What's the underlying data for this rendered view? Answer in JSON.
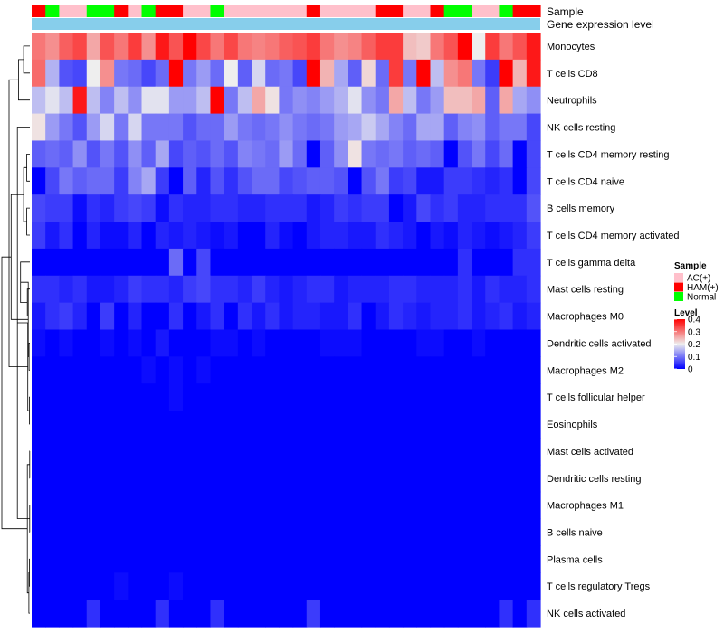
{
  "chart_data": {
    "type": "heatmap",
    "title": "",
    "annotation_track_labels": [
      "Sample",
      "Gene expression level"
    ],
    "rows": [
      "Monocytes",
      "T cells CD8",
      "Neutrophils",
      "NK cells resting",
      "T cells CD4 memory resting",
      "T cells CD4 naive",
      "B cells memory",
      "T cells CD4 memory activated",
      "T cells gamma delta",
      "Mast cells resting",
      "Macrophages M0",
      "Dendritic cells activated",
      "Macrophages M2",
      "T cells follicular helper",
      "Eosinophils",
      "Mast cells activated",
      "Dendritic cells resting",
      "Macrophages M1",
      "B cells naive",
      "Plasma cells",
      "T cells regulatory  Tregs",
      "NK cells activated"
    ],
    "sample_groups": [
      "HAM(+)",
      "Normal",
      "AC(+)",
      "AC(+)",
      "Normal",
      "Normal",
      "HAM(+)",
      "AC(+)",
      "Normal",
      "HAM(+)",
      "HAM(+)",
      "AC(+)",
      "AC(+)",
      "Normal",
      "AC(+)",
      "AC(+)",
      "AC(+)",
      "AC(+)",
      "AC(+)",
      "AC(+)",
      "HAM(+)",
      "AC(+)",
      "AC(+)",
      "AC(+)",
      "AC(+)",
      "HAM(+)",
      "HAM(+)",
      "AC(+)",
      "AC(+)",
      "HAM(+)",
      "Normal",
      "Normal",
      "AC(+)",
      "AC(+)",
      "Normal",
      "HAM(+)",
      "HAM(+)"
    ],
    "values": [
      [
        0.3,
        0.28,
        0.32,
        0.34,
        0.26,
        0.33,
        0.3,
        0.35,
        0.28,
        0.38,
        0.33,
        0.4,
        0.34,
        0.3,
        0.34,
        0.3,
        0.29,
        0.3,
        0.32,
        0.33,
        0.35,
        0.3,
        0.28,
        0.29,
        0.32,
        0.35,
        0.35,
        0.24,
        0.23,
        0.3,
        0.33,
        0.4,
        0.2,
        0.35,
        0.3,
        0.33,
        0.38
      ],
      [
        0.31,
        0.15,
        0.07,
        0.06,
        0.2,
        0.28,
        0.1,
        0.09,
        0.06,
        0.09,
        0.4,
        0.1,
        0.13,
        0.09,
        0.2,
        0.08,
        0.18,
        0.09,
        0.1,
        0.06,
        0.4,
        0.25,
        0.14,
        0.08,
        0.22,
        0.09,
        0.35,
        0.1,
        0.4,
        0.16,
        0.28,
        0.3,
        0.1,
        0.05,
        0.4,
        0.25,
        0.38
      ],
      [
        0.16,
        0.19,
        0.16,
        0.38,
        0.16,
        0.11,
        0.16,
        0.12,
        0.19,
        0.19,
        0.13,
        0.13,
        0.16,
        0.4,
        0.1,
        0.16,
        0.26,
        0.21,
        0.1,
        0.12,
        0.11,
        0.13,
        0.15,
        0.19,
        0.12,
        0.1,
        0.26,
        0.16,
        0.1,
        0.13,
        0.24,
        0.24,
        0.26,
        0.08,
        0.26,
        0.14,
        0.12
      ],
      [
        0.21,
        0.13,
        0.1,
        0.07,
        0.13,
        0.18,
        0.1,
        0.18,
        0.1,
        0.1,
        0.1,
        0.07,
        0.09,
        0.09,
        0.13,
        0.1,
        0.09,
        0.1,
        0.12,
        0.1,
        0.09,
        0.1,
        0.13,
        0.14,
        0.17,
        0.14,
        0.11,
        0.09,
        0.14,
        0.14,
        0.08,
        0.11,
        0.12,
        0.08,
        0.1,
        0.1,
        0.06
      ],
      [
        0.08,
        0.09,
        0.08,
        0.12,
        0.07,
        0.1,
        0.07,
        0.12,
        0.08,
        0.14,
        0.06,
        0.08,
        0.07,
        0.09,
        0.07,
        0.11,
        0.1,
        0.09,
        0.13,
        0.09,
        0.0,
        0.08,
        0.12,
        0.21,
        0.1,
        0.09,
        0.1,
        0.08,
        0.09,
        0.08,
        0.0,
        0.07,
        0.1,
        0.06,
        0.09,
        0.0,
        0.06
      ],
      [
        0.0,
        0.06,
        0.1,
        0.08,
        0.09,
        0.09,
        0.05,
        0.11,
        0.14,
        0.05,
        0.0,
        0.08,
        0.03,
        0.07,
        0.04,
        0.07,
        0.09,
        0.09,
        0.06,
        0.07,
        0.08,
        0.08,
        0.07,
        0.0,
        0.07,
        0.1,
        0.05,
        0.06,
        0.02,
        0.02,
        0.05,
        0.05,
        0.04,
        0.03,
        0.04,
        0.0,
        0.06
      ],
      [
        0.06,
        0.05,
        0.05,
        0.01,
        0.04,
        0.03,
        0.05,
        0.06,
        0.05,
        0.01,
        0.04,
        0.03,
        0.03,
        0.04,
        0.04,
        0.03,
        0.03,
        0.04,
        0.04,
        0.04,
        0.02,
        0.03,
        0.05,
        0.04,
        0.05,
        0.05,
        0.0,
        0.02,
        0.06,
        0.04,
        0.05,
        0.03,
        0.03,
        0.04,
        0.04,
        0.04,
        0.07
      ],
      [
        0.05,
        0.02,
        0.04,
        0.0,
        0.03,
        0.01,
        0.01,
        0.03,
        0.0,
        0.03,
        0.02,
        0.03,
        0.02,
        0.01,
        0.02,
        0.0,
        0.0,
        0.03,
        0.01,
        0.0,
        0.02,
        0.03,
        0.03,
        0.02,
        0.02,
        0.04,
        0.03,
        0.02,
        0.0,
        0.02,
        0.01,
        0.03,
        0.02,
        0.01,
        0.02,
        0.03,
        0.05
      ],
      [
        0.0,
        0.0,
        0.0,
        0.0,
        0.0,
        0.0,
        0.0,
        0.0,
        0.0,
        0.0,
        0.09,
        0.0,
        0.06,
        0.0,
        0.0,
        0.0,
        0.0,
        0.0,
        0.0,
        0.0,
        0.0,
        0.0,
        0.0,
        0.0,
        0.0,
        0.0,
        0.0,
        0.0,
        0.0,
        0.0,
        0.0,
        0.04,
        0.0,
        0.0,
        0.0,
        0.04,
        0.04
      ],
      [
        0.04,
        0.04,
        0.03,
        0.04,
        0.02,
        0.02,
        0.03,
        0.05,
        0.04,
        0.04,
        0.03,
        0.05,
        0.06,
        0.04,
        0.04,
        0.03,
        0.05,
        0.03,
        0.02,
        0.03,
        0.04,
        0.04,
        0.02,
        0.03,
        0.03,
        0.03,
        0.04,
        0.04,
        0.03,
        0.03,
        0.03,
        0.04,
        0.02,
        0.04,
        0.03,
        0.03,
        0.04
      ],
      [
        0.02,
        0.04,
        0.05,
        0.03,
        0.0,
        0.05,
        0.0,
        0.03,
        0.0,
        0.0,
        0.04,
        0.0,
        0.02,
        0.04,
        0.0,
        0.04,
        0.02,
        0.04,
        0.02,
        0.03,
        0.03,
        0.02,
        0.02,
        0.04,
        0.0,
        0.02,
        0.04,
        0.03,
        0.02,
        0.03,
        0.03,
        0.04,
        0.02,
        0.03,
        0.04,
        0.02,
        0.03
      ],
      [
        0.01,
        0.0,
        0.01,
        0.0,
        0.0,
        0.01,
        0.0,
        0.01,
        0.0,
        0.02,
        0.0,
        0.0,
        0.0,
        0.01,
        0.01,
        0.0,
        0.01,
        0.0,
        0.0,
        0.0,
        0.0,
        0.01,
        0.01,
        0.01,
        0.0,
        0.0,
        0.0,
        0.0,
        0.01,
        0.01,
        0.0,
        0.0,
        0.01,
        0.0,
        0.0,
        0.0,
        0.0
      ],
      [
        0.0,
        0.0,
        0.0,
        0.0,
        0.0,
        0.0,
        0.0,
        0.0,
        0.01,
        0.0,
        0.01,
        0.0,
        0.01,
        0.0,
        0.0,
        0.0,
        0.0,
        0.0,
        0.0,
        0.0,
        0.0,
        0.0,
        0.0,
        0.0,
        0.0,
        0.0,
        0.0,
        0.0,
        0.0,
        0.0,
        0.0,
        0.0,
        0.0,
        0.0,
        0.0,
        0.0,
        0.0
      ],
      [
        0.0,
        0.0,
        0.0,
        0.0,
        0.0,
        0.0,
        0.0,
        0.0,
        0.0,
        0.0,
        0.01,
        0.0,
        0.0,
        0.0,
        0.0,
        0.0,
        0.0,
        0.0,
        0.0,
        0.0,
        0.0,
        0.0,
        0.0,
        0.0,
        0.0,
        0.0,
        0.0,
        0.0,
        0.0,
        0.0,
        0.0,
        0.0,
        0.0,
        0.0,
        0.0,
        0.0,
        0.0
      ],
      [
        0.0,
        0.0,
        0.0,
        0.0,
        0.0,
        0.0,
        0.0,
        0.0,
        0.0,
        0.0,
        0.0,
        0.0,
        0.0,
        0.0,
        0.0,
        0.0,
        0.0,
        0.0,
        0.0,
        0.0,
        0.0,
        0.0,
        0.0,
        0.0,
        0.0,
        0.0,
        0.0,
        0.0,
        0.0,
        0.0,
        0.0,
        0.0,
        0.0,
        0.0,
        0.0,
        0.0,
        0.0
      ],
      [
        0.0,
        0.0,
        0.0,
        0.0,
        0.0,
        0.0,
        0.0,
        0.0,
        0.0,
        0.0,
        0.0,
        0.0,
        0.0,
        0.0,
        0.0,
        0.0,
        0.0,
        0.0,
        0.0,
        0.0,
        0.0,
        0.0,
        0.0,
        0.0,
        0.0,
        0.0,
        0.0,
        0.0,
        0.0,
        0.0,
        0.0,
        0.0,
        0.0,
        0.0,
        0.0,
        0.0,
        0.0
      ],
      [
        0.0,
        0.0,
        0.0,
        0.0,
        0.0,
        0.0,
        0.0,
        0.0,
        0.0,
        0.0,
        0.0,
        0.0,
        0.0,
        0.0,
        0.0,
        0.0,
        0.0,
        0.0,
        0.0,
        0.0,
        0.0,
        0.0,
        0.0,
        0.0,
        0.0,
        0.0,
        0.0,
        0.0,
        0.0,
        0.0,
        0.0,
        0.0,
        0.0,
        0.0,
        0.0,
        0.0,
        0.0
      ],
      [
        0.0,
        0.0,
        0.0,
        0.0,
        0.0,
        0.0,
        0.0,
        0.0,
        0.0,
        0.0,
        0.0,
        0.0,
        0.0,
        0.0,
        0.0,
        0.0,
        0.0,
        0.0,
        0.0,
        0.0,
        0.0,
        0.0,
        0.0,
        0.0,
        0.0,
        0.0,
        0.0,
        0.0,
        0.0,
        0.0,
        0.0,
        0.0,
        0.0,
        0.0,
        0.0,
        0.0,
        0.0
      ],
      [
        0.0,
        0.0,
        0.0,
        0.0,
        0.0,
        0.0,
        0.0,
        0.0,
        0.0,
        0.0,
        0.0,
        0.0,
        0.0,
        0.0,
        0.0,
        0.0,
        0.0,
        0.0,
        0.0,
        0.0,
        0.0,
        0.0,
        0.0,
        0.0,
        0.0,
        0.0,
        0.0,
        0.0,
        0.0,
        0.0,
        0.0,
        0.0,
        0.0,
        0.0,
        0.0,
        0.0,
        0.0
      ],
      [
        0.0,
        0.0,
        0.0,
        0.0,
        0.0,
        0.0,
        0.0,
        0.0,
        0.0,
        0.0,
        0.0,
        0.0,
        0.0,
        0.0,
        0.0,
        0.0,
        0.0,
        0.0,
        0.0,
        0.0,
        0.0,
        0.0,
        0.0,
        0.0,
        0.0,
        0.0,
        0.0,
        0.0,
        0.0,
        0.0,
        0.0,
        0.0,
        0.0,
        0.0,
        0.0,
        0.0,
        0.0
      ],
      [
        0.0,
        0.0,
        0.0,
        0.0,
        0.0,
        0.0,
        0.01,
        0.0,
        0.0,
        0.0,
        0.01,
        0.0,
        0.0,
        0.0,
        0.0,
        0.0,
        0.0,
        0.0,
        0.0,
        0.0,
        0.0,
        0.0,
        0.0,
        0.0,
        0.0,
        0.0,
        0.0,
        0.0,
        0.0,
        0.0,
        0.0,
        0.0,
        0.0,
        0.0,
        0.0,
        0.0,
        0.0
      ],
      [
        0.0,
        0.0,
        0.0,
        0.0,
        0.04,
        0.0,
        0.0,
        0.0,
        0.0,
        0.04,
        0.0,
        0.0,
        0.0,
        0.04,
        0.0,
        0.0,
        0.0,
        0.0,
        0.0,
        0.0,
        0.05,
        0.0,
        0.0,
        0.0,
        0.0,
        0.0,
        0.0,
        0.0,
        0.0,
        0.0,
        0.0,
        0.0,
        0.0,
        0.0,
        0.04,
        0.0,
        0.04
      ]
    ],
    "color_scale": {
      "min": 0,
      "max": 0.4,
      "stops": [
        {
          "value": 0,
          "color": "#0000ff"
        },
        {
          "value": 0.2,
          "color": "#eeeeee"
        },
        {
          "value": 0.4,
          "color": "#ff0000"
        }
      ]
    },
    "sample_legend": {
      "title": "Sample",
      "entries": [
        {
          "label": "AC(+)",
          "color": "#ffc0cb"
        },
        {
          "label": "HAM(+)",
          "color": "#ff0000"
        },
        {
          "label": "Normal",
          "color": "#00ff00"
        }
      ]
    },
    "level_legend": {
      "title": "Level",
      "ticks": [
        "0.4",
        "0.3",
        "0.2",
        "0.1",
        "0"
      ]
    },
    "expression_track_color": "#87ceeb",
    "dendrogram": {
      "order": [
        0,
        1,
        2,
        3,
        4,
        5,
        6,
        7,
        8,
        9,
        10,
        11,
        12,
        13,
        14,
        15,
        16,
        17,
        18,
        19,
        20,
        21
      ],
      "merges": [
        [
          0,
          1,
          0.3
        ],
        [
          4,
          5,
          0.15
        ],
        [
          6,
          7,
          0.15
        ],
        [
          9,
          10,
          0.12
        ],
        [
          11,
          12,
          0.04
        ],
        [
          13,
          14,
          0.02
        ],
        [
          15,
          16,
          0.01
        ],
        [
          17,
          18,
          0.01
        ],
        [
          19,
          20,
          0.02
        ],
        [
          22,
          2,
          0.55
        ],
        [
          23,
          24,
          0.3
        ],
        [
          25,
          8,
          0.45
        ],
        [
          29,
          3,
          0.6
        ],
        [
          30,
          21,
          0.05
        ],
        [
          33,
          26,
          0.08
        ],
        [
          34,
          27,
          0.1
        ],
        [
          35,
          28,
          0.12
        ],
        [
          36,
          32,
          0.9
        ],
        [
          37,
          31,
          1.0
        ],
        [
          39,
          38,
          1.35
        ]
      ]
    }
  }
}
